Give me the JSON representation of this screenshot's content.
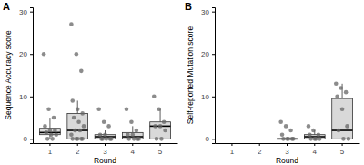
{
  "chart_data": [
    {
      "type": "box",
      "title": "A",
      "x_label": "Round",
      "y_label": "Sequence Accuracy score",
      "categories": [
        "1",
        "2",
        "3",
        "4",
        "5"
      ],
      "boxes": [
        {
          "whisker_low": 0,
          "q1": 1,
          "median": 1.5,
          "q3": 2.5,
          "whisker_high": 5
        },
        {
          "whisker_low": 0,
          "q1": 0,
          "median": 2,
          "q3": 6,
          "whisker_high": 9
        },
        {
          "whisker_low": 0,
          "q1": 0,
          "median": 0.5,
          "q3": 1,
          "whisker_high": 2
        },
        {
          "whisker_low": 0,
          "q1": 0,
          "median": 0.5,
          "q3": 1.5,
          "whisker_high": 3
        },
        {
          "whisker_low": 0,
          "q1": 0,
          "median": 3,
          "q3": 4,
          "whisker_high": 7
        }
      ],
      "points": [
        [
          20,
          7,
          5,
          3,
          2,
          2,
          1.5,
          1,
          1,
          0,
          0
        ],
        [
          27,
          20,
          16,
          9,
          7,
          6,
          5,
          4,
          3,
          2,
          2,
          1,
          0,
          0,
          0,
          0,
          0
        ],
        [
          7,
          4,
          3,
          1,
          1,
          0,
          0,
          0,
          0,
          0
        ],
        [
          7,
          4,
          2,
          1,
          1,
          0,
          0,
          0,
          0
        ],
        [
          10,
          7,
          4,
          3,
          3,
          2,
          0,
          0
        ]
      ],
      "ylim": [
        -1,
        31
      ],
      "yticks": [
        0,
        10,
        20,
        30
      ],
      "color": "#d9d9d9"
    },
    {
      "type": "box",
      "title": "B",
      "x_label": "Round",
      "y_label": "Self-reported Mutation score",
      "categories": [
        "1",
        "2",
        "3",
        "4",
        "5"
      ],
      "boxes": [
        null,
        null,
        {
          "whisker_low": 0,
          "q1": 0,
          "median": 0,
          "q3": 0,
          "whisker_high": 0
        },
        {
          "whisker_low": 0,
          "q1": 0,
          "median": 0.5,
          "q3": 1,
          "whisker_high": 2
        },
        {
          "whisker_low": 0,
          "q1": 0,
          "median": 2,
          "q3": 9.5,
          "whisker_high": 13
        }
      ],
      "points": [
        [],
        [],
        [
          4,
          3,
          2,
          1,
          0,
          0,
          0,
          0,
          0
        ],
        [
          3,
          2,
          1,
          1,
          0,
          0,
          0,
          0
        ],
        [
          13,
          12,
          11,
          10,
          7,
          3,
          2,
          0,
          0
        ]
      ],
      "ylim": [
        -1,
        31
      ],
      "yticks": [
        0,
        10,
        20,
        30
      ],
      "color": "#d9d9d9"
    }
  ]
}
